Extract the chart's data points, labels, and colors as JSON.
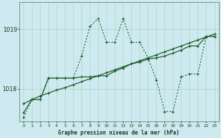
{
  "title": "Graphe pression niveau de la mer (hPa)",
  "background_color": "#cfe9f0",
  "grid_color": "#a8d5c2",
  "line_color": "#1a5c28",
  "ylim": [
    1017.45,
    1019.45
  ],
  "yticks": [
    1018,
    1019
  ],
  "x_labels": [
    "0",
    "1",
    "2",
    "3",
    "4",
    "5",
    "6",
    "7",
    "8",
    "9",
    "10",
    "11",
    "12",
    "13",
    "14",
    "15",
    "16",
    "17",
    "18",
    "19",
    "20",
    "21",
    "22",
    "23"
  ],
  "series_trend": [
    1017.75,
    1017.82,
    1017.88,
    1017.93,
    1017.98,
    1018.02,
    1018.07,
    1018.12,
    1018.17,
    1018.22,
    1018.27,
    1018.32,
    1018.37,
    1018.42,
    1018.47,
    1018.52,
    1018.57,
    1018.62,
    1018.67,
    1018.72,
    1018.77,
    1018.82,
    1018.87,
    1018.92
  ],
  "series_solid": [
    1017.6,
    1017.82,
    1017.82,
    1018.18,
    1018.18,
    1018.18,
    1018.18,
    1018.2,
    1018.2,
    1018.22,
    1018.22,
    1018.3,
    1018.35,
    1018.42,
    1018.45,
    1018.5,
    1018.52,
    1018.55,
    1018.6,
    1018.65,
    1018.72,
    1018.72,
    1018.88,
    1018.88
  ],
  "series_dotted": [
    1017.52,
    1017.82,
    1017.82,
    1018.18,
    1018.18,
    1018.18,
    1018.18,
    1018.55,
    1019.05,
    1019.18,
    1018.78,
    1018.78,
    1019.18,
    1018.78,
    1018.78,
    1018.52,
    1018.15,
    1017.62,
    1017.62,
    1018.2,
    1018.25,
    1018.25,
    1018.88,
    1018.88
  ]
}
